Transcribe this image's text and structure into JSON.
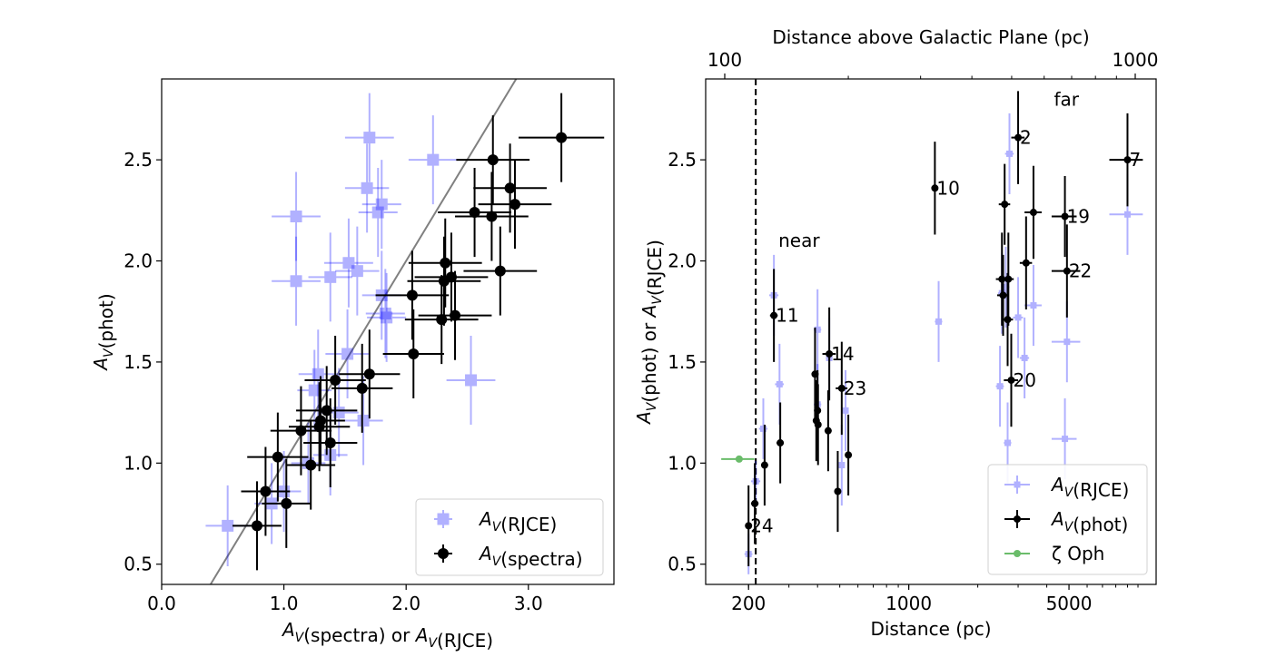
{
  "chart_data": [
    {
      "type": "scatter",
      "panel": "left",
      "title": "",
      "xlabel": "A_V(spectra) or A_V(RJCE)",
      "ylabel": "A_V(phot)",
      "xlim": [
        0.0,
        3.7
      ],
      "ylim": [
        0.4,
        2.9
      ],
      "grid": false,
      "xticks": [
        {
          "value": 0.0,
          "label": "0.0"
        },
        {
          "value": 1.0,
          "label": "1.0"
        },
        {
          "value": 2.0,
          "label": "2.0"
        },
        {
          "value": 3.0,
          "label": "3.0"
        }
      ],
      "yticks": [
        {
          "value": 0.5,
          "label": "0.5"
        },
        {
          "value": 1.0,
          "label": "1.0"
        },
        {
          "value": 1.5,
          "label": "1.5"
        },
        {
          "value": 2.0,
          "label": "2.0"
        },
        {
          "value": 2.5,
          "label": "2.5"
        }
      ],
      "reference_line": {
        "slope": 1.0,
        "intercept": 0.0,
        "color": "#808080"
      },
      "legend_position": "lower-right",
      "series": [
        {
          "name": "RJCE",
          "legend_label": "A_V(RJCE)",
          "color": "#0000ff",
          "alpha": 0.3,
          "marker": "square",
          "points": [
            [
              0.54,
              0.69,
              0.18,
              0.2
            ],
            [
              0.9,
              0.8,
              0.14,
              0.2
            ],
            [
              1.0,
              0.86,
              0.14,
              0.2
            ],
            [
              1.2,
              1.0,
              0.14,
              0.2
            ],
            [
              1.28,
              1.44,
              0.16,
              0.22
            ],
            [
              1.25,
              1.36,
              0.14,
              0.2
            ],
            [
              1.38,
              1.04,
              0.14,
              0.2
            ],
            [
              1.45,
              1.25,
              0.16,
              0.22
            ],
            [
              1.52,
              1.54,
              0.18,
              0.22
            ],
            [
              1.65,
              1.21,
              0.16,
              0.22
            ],
            [
              1.1,
              2.22,
              0.2,
              0.22
            ],
            [
              1.1,
              1.9,
              0.2,
              0.22
            ],
            [
              1.38,
              1.92,
              0.18,
              0.22
            ],
            [
              1.53,
              1.99,
              0.2,
              0.22
            ],
            [
              1.6,
              1.95,
              0.18,
              0.22
            ],
            [
              1.7,
              2.61,
              0.2,
              0.22
            ],
            [
              1.68,
              2.36,
              0.18,
              0.22
            ],
            [
              1.77,
              2.24,
              0.16,
              0.22
            ],
            [
              1.8,
              2.28,
              0.16,
              0.22
            ],
            [
              1.8,
              1.83,
              0.16,
              0.22
            ],
            [
              1.84,
              1.72,
              0.16,
              0.22
            ],
            [
              1.83,
              1.74,
              0.16,
              0.22
            ],
            [
              2.22,
              2.5,
              0.2,
              0.22
            ],
            [
              2.53,
              1.41,
              0.2,
              0.22
            ]
          ]
        },
        {
          "name": "spectra",
          "legend_label": "A_V(spectra)",
          "color": "#000000",
          "alpha": 1.0,
          "marker": "circle",
          "points": [
            [
              0.78,
              0.69,
              0.2,
              0.22
            ],
            [
              0.85,
              0.86,
              0.2,
              0.22
            ],
            [
              0.95,
              1.03,
              0.25,
              0.22
            ],
            [
              1.02,
              0.8,
              0.2,
              0.22
            ],
            [
              1.14,
              1.16,
              0.25,
              0.22
            ],
            [
              1.22,
              0.99,
              0.2,
              0.22
            ],
            [
              1.29,
              1.18,
              0.25,
              0.22
            ],
            [
              1.3,
              1.21,
              0.2,
              0.22
            ],
            [
              1.35,
              1.26,
              0.25,
              0.22
            ],
            [
              1.38,
              1.1,
              0.22,
              0.22
            ],
            [
              1.42,
              1.41,
              0.25,
              0.22
            ],
            [
              1.64,
              1.37,
              0.25,
              0.22
            ],
            [
              1.7,
              1.44,
              0.25,
              0.22
            ],
            [
              2.05,
              1.83,
              0.3,
              0.22
            ],
            [
              2.06,
              1.54,
              0.25,
              0.22
            ],
            [
              2.29,
              1.71,
              0.3,
              0.22
            ],
            [
              2.31,
              1.9,
              0.3,
              0.22
            ],
            [
              2.32,
              1.99,
              0.3,
              0.22
            ],
            [
              2.37,
              1.92,
              0.3,
              0.22
            ],
            [
              2.4,
              1.73,
              0.3,
              0.22
            ],
            [
              2.56,
              2.24,
              0.3,
              0.22
            ],
            [
              2.7,
              2.22,
              0.3,
              0.22
            ],
            [
              2.71,
              2.5,
              0.3,
              0.22
            ],
            [
              2.77,
              1.95,
              0.3,
              0.22
            ],
            [
              2.85,
              2.36,
              0.3,
              0.22
            ],
            [
              2.89,
              2.28,
              0.3,
              0.22
            ],
            [
              3.27,
              2.61,
              0.35,
              0.22
            ]
          ]
        }
      ]
    },
    {
      "type": "scatter",
      "panel": "right",
      "title": "",
      "xscale": "log",
      "xlabel": "Distance (pc)",
      "ylabel": "A_V(phot) or A_V(RJCE)",
      "top_xlabel": "Distance above Galactic Plane (pc)",
      "xlim": [
        130,
        12000
      ],
      "ylim": [
        0.4,
        2.9
      ],
      "xticks": [
        {
          "value": 200,
          "label": "200"
        },
        {
          "value": 1000,
          "label": "1000"
        },
        {
          "value": 5000,
          "label": "5000"
        }
      ],
      "yticks": [
        {
          "value": 0.5,
          "label": "0.5"
        },
        {
          "value": 1.0,
          "label": "1.0"
        },
        {
          "value": 1.5,
          "label": "1.5"
        },
        {
          "value": 2.0,
          "label": "2.0"
        },
        {
          "value": 2.5,
          "label": "2.5"
        }
      ],
      "top_xlim": [
        100,
        1000
      ],
      "top_xticks": [
        {
          "value": 100,
          "label": "100"
        },
        {
          "value": 1000,
          "label": "1000"
        }
      ],
      "vline": {
        "x": 215,
        "style": "dashed",
        "color": "#000000"
      },
      "region_labels": [
        {
          "text": "near",
          "x": 270,
          "y": 2.1
        },
        {
          "text": "far",
          "x": 4300,
          "y": 2.8
        }
      ],
      "legend_position": "lower-right",
      "series": [
        {
          "name": "RJCE",
          "legend_label": "A_V(RJCE)",
          "color": "#0000ff",
          "alpha": 0.3,
          "marker": "square",
          "points": [
            [
              200,
              0.55,
              8,
              0.1
            ],
            [
              215,
              0.91,
              10,
              0.1
            ],
            [
              232,
              1.17,
              10,
              0.15
            ],
            [
              258,
              1.83,
              12,
              0.2
            ],
            [
              273,
              1.39,
              12,
              0.2
            ],
            [
              400,
              1.66,
              15,
              0.2
            ],
            [
              400,
              1.29,
              15,
              0.2
            ],
            [
              450,
              1.52,
              15,
              0.2
            ],
            [
              510,
              0.99,
              15,
              0.2
            ],
            [
              530,
              1.26,
              15,
              0.2
            ],
            [
              1350,
              1.7,
              50,
              0.2
            ],
            [
              2500,
              1.38,
              100,
              0.2
            ],
            [
              2550,
              1.84,
              100,
              0.2
            ],
            [
              2650,
              1.87,
              100,
              0.2
            ],
            [
              2750,
              2.53,
              120,
              0.2
            ],
            [
              2700,
              1.1,
              100,
              0.2
            ],
            [
              3000,
              1.72,
              150,
              0.2
            ],
            [
              3200,
              1.52,
              150,
              0.2
            ],
            [
              3500,
              1.78,
              300,
              0.2
            ],
            [
              4800,
              1.12,
              600,
              0.2
            ],
            [
              4900,
              1.6,
              700,
              0.2
            ],
            [
              9000,
              2.23,
              1500,
              0.2
            ]
          ]
        },
        {
          "name": "phot",
          "legend_label": "A_V(phot)",
          "color": "#000000",
          "alpha": 1.0,
          "marker": "circle",
          "points": [
            [
              200,
              0.69,
              6,
              0.2
            ],
            [
              213,
              0.8,
              8,
              0.2
            ],
            [
              235,
              0.99,
              8,
              0.2
            ],
            [
              258,
              1.73,
              10,
              0.23
            ],
            [
              275,
              1.1,
              10,
              0.2
            ],
            [
              390,
              1.44,
              12,
              0.23
            ],
            [
              395,
              1.21,
              12,
              0.2
            ],
            [
              400,
              1.26,
              12,
              0.2
            ],
            [
              402,
              1.19,
              12,
              0.2
            ],
            [
              445,
              1.16,
              12,
              0.2
            ],
            [
              450,
              1.54,
              30,
              0.23
            ],
            [
              490,
              0.86,
              12,
              0.2
            ],
            [
              510,
              1.37,
              30,
              0.23
            ],
            [
              545,
              1.04,
              12,
              0.2
            ],
            [
              1300,
              2.36,
              30,
              0.23
            ],
            [
              2550,
              1.91,
              150,
              0.23
            ],
            [
              2580,
              1.83,
              150,
              0.2
            ],
            [
              2620,
              2.28,
              150,
              0.2
            ],
            [
              2700,
              1.71,
              150,
              0.23
            ],
            [
              2720,
              1.91,
              150,
              0.23
            ],
            [
              2800,
              1.41,
              200,
              0.23
            ],
            [
              3000,
              2.61,
              200,
              0.23
            ],
            [
              3250,
              1.99,
              200,
              0.23
            ],
            [
              3500,
              2.24,
              300,
              0.23
            ],
            [
              4800,
              2.22,
              600,
              0.2
            ],
            [
              4900,
              1.95,
              700,
              0.23
            ],
            [
              9000,
              2.5,
              1500,
              0.23
            ]
          ]
        },
        {
          "name": "zeta_oph",
          "legend_label": "ζ Oph",
          "color": "#2ca02c",
          "alpha": 0.7,
          "marker": "circle",
          "points": [
            [
              182,
              1.02,
              30,
              0.0
            ]
          ]
        }
      ],
      "point_labels": [
        {
          "text": "24",
          "x": 200,
          "y": 0.69
        },
        {
          "text": "11",
          "x": 258,
          "y": 1.73
        },
        {
          "text": "14",
          "x": 450,
          "y": 1.54
        },
        {
          "text": "23",
          "x": 510,
          "y": 1.37
        },
        {
          "text": "10",
          "x": 1300,
          "y": 2.36
        },
        {
          "text": "2",
          "x": 3000,
          "y": 2.61
        },
        {
          "text": "20",
          "x": 2800,
          "y": 1.41
        },
        {
          "text": "19",
          "x": 4800,
          "y": 2.22
        },
        {
          "text": "22",
          "x": 4900,
          "y": 1.95
        },
        {
          "text": "7",
          "x": 9000,
          "y": 2.5
        }
      ]
    }
  ]
}
